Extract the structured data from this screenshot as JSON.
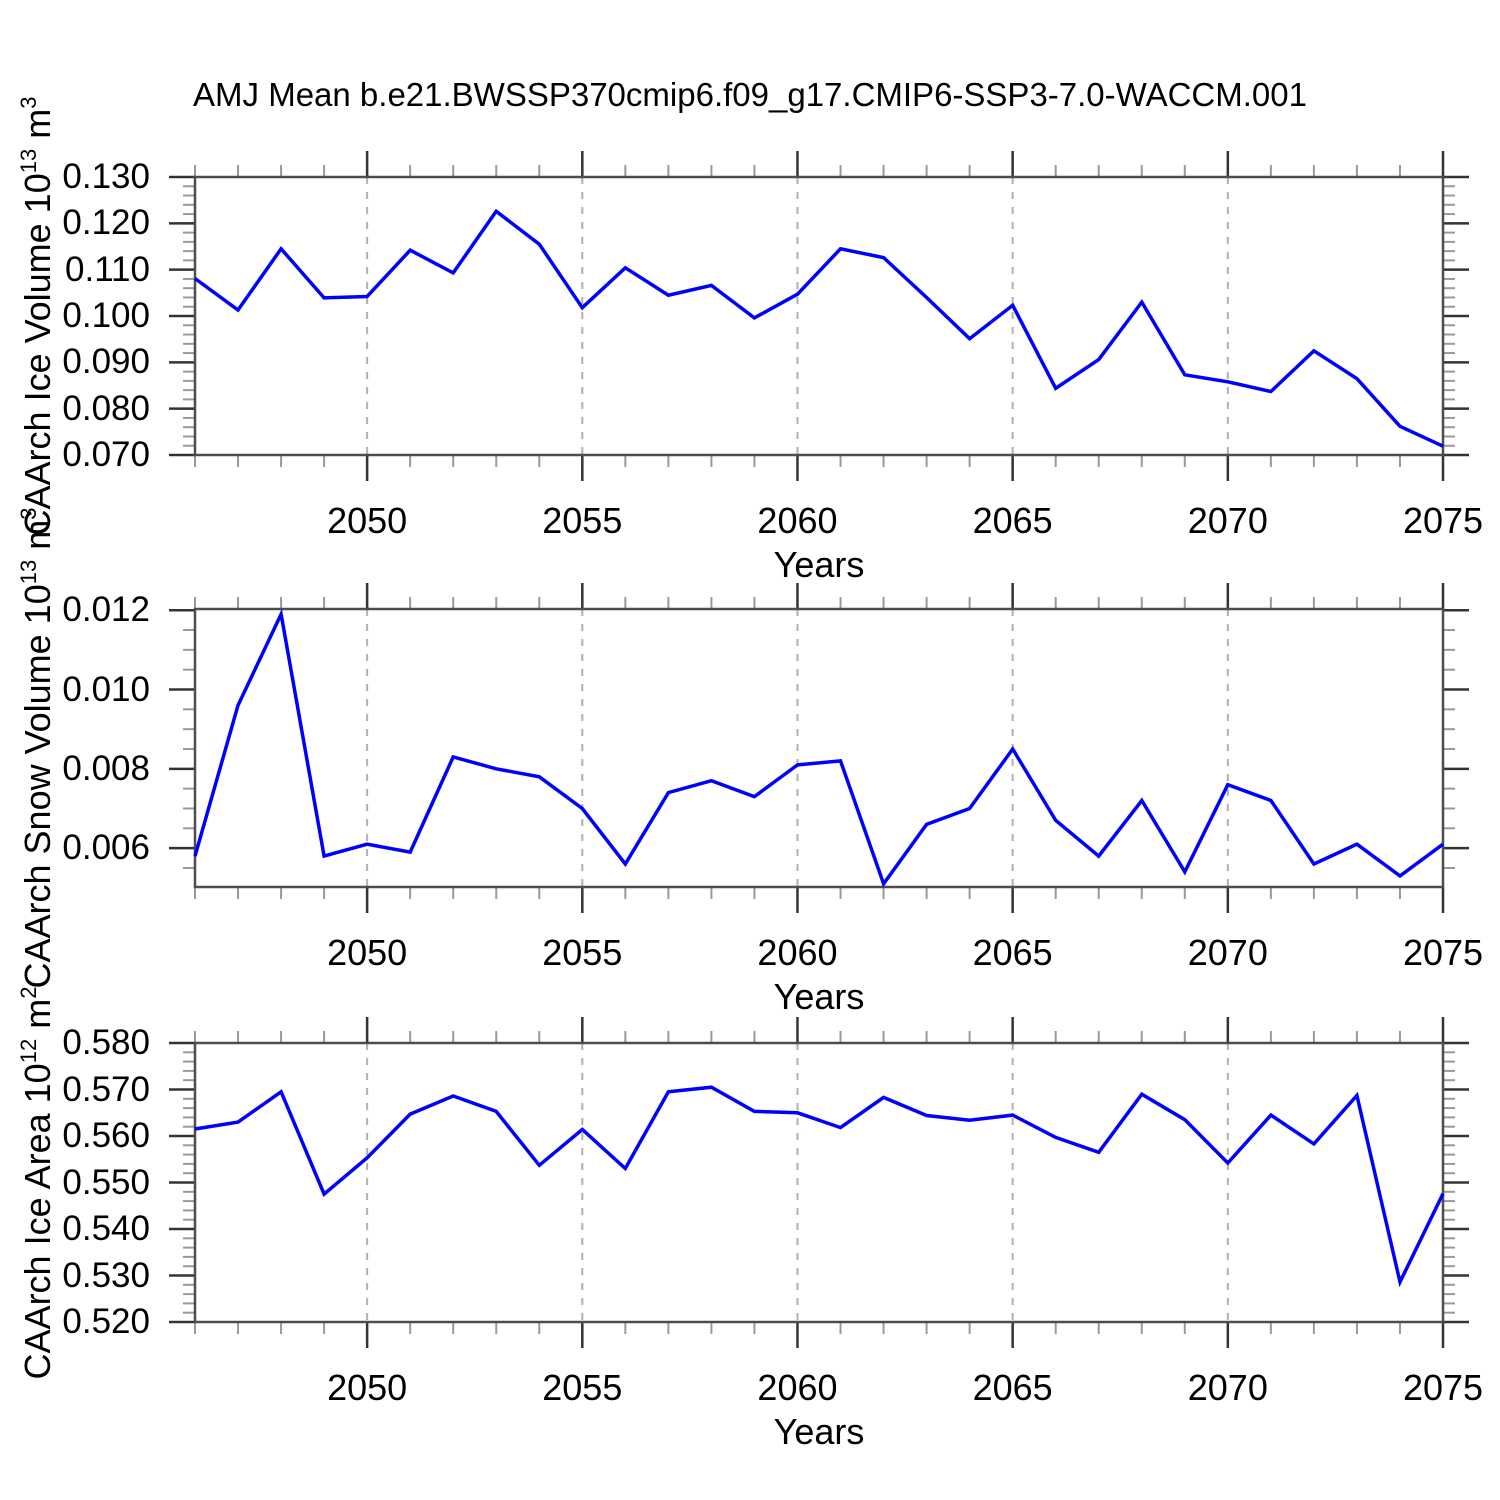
{
  "title": "AMJ Mean b.e21.BWSSP370cmip6.f09_g17.CMIP6-SSP3-7.0-WACCM.001",
  "line_color": "#0000ff",
  "grid_color": "#b0b0b0",
  "axis_color": "#4d4d4d",
  "major_tick_color": "#333333",
  "minor_tick_color": "#999999",
  "chart_data": [
    {
      "type": "line",
      "panel": "ice-volume",
      "ylabel": "CAArch Ice Volume 10^13 m^3",
      "ylabel_segments": [
        [
          "CAArch Ice Volume 10",
          false
        ],
        [
          "13",
          true
        ],
        [
          " m",
          false
        ],
        [
          "3",
          true
        ]
      ],
      "xlabel": "Years",
      "x": [
        2046,
        2047,
        2048,
        2049,
        2050,
        2051,
        2052,
        2053,
        2054,
        2055,
        2056,
        2057,
        2058,
        2059,
        2060,
        2061,
        2062,
        2063,
        2064,
        2065,
        2066,
        2067,
        2068,
        2069,
        2070,
        2071,
        2072,
        2073,
        2074,
        2075
      ],
      "series": [
        {
          "name": "CAArch Ice Volume",
          "values": [
            0.1081,
            0.1013,
            0.1145,
            0.1039,
            0.1042,
            0.1142,
            0.1093,
            0.1226,
            0.1155,
            0.1018,
            0.1104,
            0.1045,
            0.1066,
            0.0996,
            0.1047,
            0.1145,
            0.1126,
            0.104,
            0.0951,
            0.1023,
            0.0844,
            0.0906,
            0.103,
            0.0873,
            0.0858,
            0.0837,
            0.0925,
            0.0865,
            0.0762,
            0.0719
          ]
        }
      ],
      "xlim": [
        2046,
        2075
      ],
      "ylim": [
        0.07,
        0.13
      ],
      "yticks": [
        0.07,
        0.08,
        0.09,
        0.1,
        0.11,
        0.12,
        0.13
      ],
      "ytick_labels": [
        "0.070",
        "0.080",
        "0.090",
        "0.100",
        "0.110",
        "0.120",
        "0.130"
      ],
      "ymajor_step": 0.01,
      "yminor_step": 0.002,
      "xticks": [
        2050,
        2055,
        2060,
        2065,
        2070,
        2075
      ],
      "xtick_labels": [
        "2050",
        "2055",
        "2060",
        "2065",
        "2070",
        "2075"
      ],
      "grid_years": [
        2050,
        2055,
        2060,
        2065,
        2070
      ],
      "grid_on": true,
      "legend": "none"
    },
    {
      "type": "line",
      "panel": "snow-volume",
      "ylabel": "CAArch Snow Volume 10^13 m^3",
      "ylabel_segments": [
        [
          "CAArch Snow Volume 10",
          false
        ],
        [
          "13",
          true
        ],
        [
          " m",
          false
        ],
        [
          "3",
          true
        ]
      ],
      "xlabel": "Years",
      "x": [
        2046,
        2047,
        2048,
        2049,
        2050,
        2051,
        2052,
        2053,
        2054,
        2055,
        2056,
        2057,
        2058,
        2059,
        2060,
        2061,
        2062,
        2063,
        2064,
        2065,
        2066,
        2067,
        2068,
        2069,
        2070,
        2071,
        2072,
        2073,
        2074,
        2075
      ],
      "series": [
        {
          "name": "CAArch Snow Volume",
          "values": [
            0.0058,
            0.0096,
            0.0119,
            0.0058,
            0.0061,
            0.0059,
            0.0083,
            0.008,
            0.0078,
            0.007,
            0.0056,
            0.0074,
            0.0077,
            0.0073,
            0.0081,
            0.0082,
            0.0051,
            0.0066,
            0.007,
            0.0085,
            0.0067,
            0.0058,
            0.0072,
            0.0054,
            0.0076,
            0.0072,
            0.0056,
            0.0061,
            0.0053,
            0.0061
          ]
        }
      ],
      "xlim": [
        2046,
        2075
      ],
      "ylim": [
        0.00502,
        0.01203
      ],
      "yticks": [
        0.006,
        0.008,
        0.01,
        0.012
      ],
      "ytick_labels": [
        "0.006",
        "0.008",
        "0.010",
        "0.012"
      ],
      "ymajor_step": 0.002,
      "yminor_step": 0.0005,
      "xticks": [
        2050,
        2055,
        2060,
        2065,
        2070,
        2075
      ],
      "xtick_labels": [
        "2050",
        "2055",
        "2060",
        "2065",
        "2070",
        "2075"
      ],
      "grid_years": [
        2050,
        2055,
        2060,
        2065,
        2070
      ],
      "grid_on": true,
      "legend": "none"
    },
    {
      "type": "line",
      "panel": "ice-area",
      "ylabel": "CAArch Ice Area 10^12 m^2",
      "ylabel_segments": [
        [
          "CAArch Ice Area 10",
          false
        ],
        [
          "12",
          true
        ],
        [
          " m",
          false
        ],
        [
          "2",
          true
        ]
      ],
      "xlabel": "Years",
      "x": [
        2046,
        2047,
        2048,
        2049,
        2050,
        2051,
        2052,
        2053,
        2054,
        2055,
        2056,
        2057,
        2058,
        2059,
        2060,
        2061,
        2062,
        2063,
        2064,
        2065,
        2066,
        2067,
        2068,
        2069,
        2070,
        2071,
        2072,
        2073,
        2074,
        2075
      ],
      "series": [
        {
          "name": "CAArch Ice Area",
          "values": [
            0.5615,
            0.563,
            0.5695,
            0.5475,
            0.5553,
            0.5647,
            0.5686,
            0.5653,
            0.5537,
            0.5614,
            0.553,
            0.5695,
            0.5705,
            0.5653,
            0.565,
            0.5618,
            0.5683,
            0.5644,
            0.5634,
            0.5645,
            0.5597,
            0.5565,
            0.569,
            0.5635,
            0.5542,
            0.5645,
            0.5583,
            0.5687,
            0.5286,
            0.5476
          ]
        }
      ],
      "xlim": [
        2046,
        2075
      ],
      "ylim": [
        0.52,
        0.58
      ],
      "yticks": [
        0.52,
        0.53,
        0.54,
        0.55,
        0.56,
        0.57,
        0.58
      ],
      "ytick_labels": [
        "0.520",
        "0.530",
        "0.540",
        "0.550",
        "0.560",
        "0.570",
        "0.580"
      ],
      "ymajor_step": 0.01,
      "yminor_step": 0.002,
      "xticks": [
        2050,
        2055,
        2060,
        2065,
        2070,
        2075
      ],
      "xtick_labels": [
        "2050",
        "2055",
        "2060",
        "2065",
        "2070",
        "2075"
      ],
      "grid_years": [
        2050,
        2055,
        2060,
        2065,
        2070
      ],
      "grid_on": true,
      "legend": "none"
    }
  ]
}
